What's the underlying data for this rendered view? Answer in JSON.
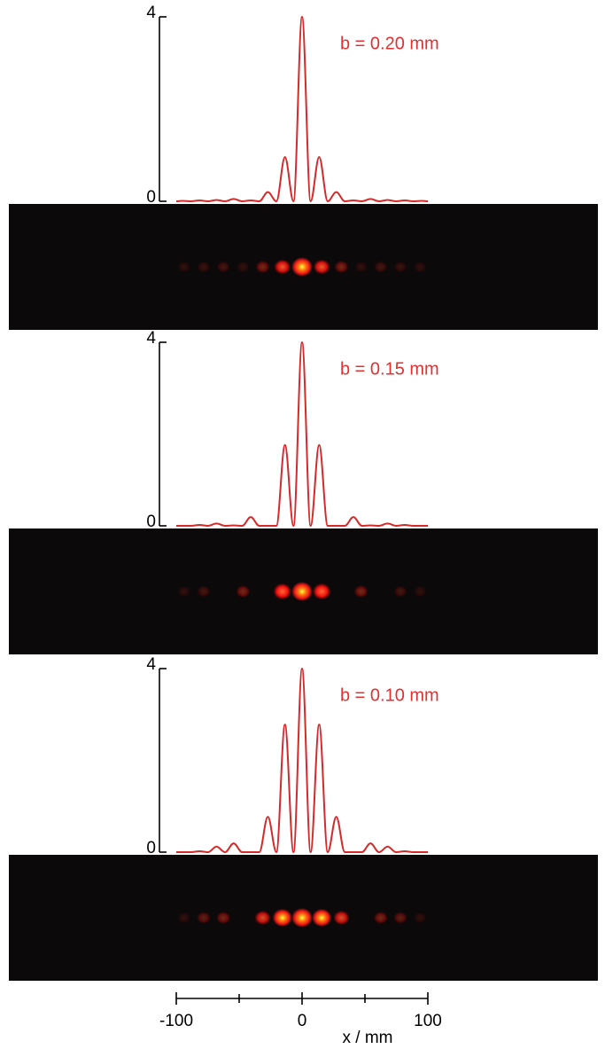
{
  "chart_data": [
    {
      "type": "line",
      "annotation": "b = 0.20 mm",
      "x": [
        -100,
        -95.2,
        -88.4,
        -81.6,
        -74.8,
        -68,
        -61.2,
        -54.4,
        -47.6,
        -40.8,
        -34,
        -27.2,
        -20.4,
        -13.6,
        -6.8,
        0,
        6.8,
        13.6,
        20.4,
        27.2,
        34,
        40.8,
        47.6,
        54.4,
        61.2,
        68,
        74.8,
        81.6,
        88.4,
        95.2,
        100
      ],
      "series": [
        {
          "color": "#d42a2a",
          "values": [
            0,
            0.01,
            0,
            0.02,
            0,
            0.03,
            0,
            0.05,
            0,
            0.02,
            0,
            0.2,
            0,
            0.96,
            0,
            4,
            0,
            0.96,
            0,
            0.2,
            0,
            0.02,
            0,
            0.05,
            0,
            0.03,
            0,
            0.02,
            0,
            0.01,
            0
          ]
        }
      ],
      "xlim": [
        -100,
        100
      ],
      "ylim": [
        0,
        4
      ],
      "yticks": [
        0,
        4
      ]
    },
    {
      "type": "line",
      "annotation": "b = 0.15 mm",
      "x": [
        -100,
        -95.2,
        -88.4,
        -81.6,
        -74.8,
        -68,
        -61.2,
        -54.4,
        -47.6,
        -40.8,
        -34,
        -27.2,
        -20.4,
        -13.6,
        -6.8,
        0,
        6.8,
        13.6,
        20.4,
        27.2,
        34,
        40.8,
        47.6,
        54.4,
        61.2,
        68,
        74.8,
        81.6,
        88.4,
        95.2,
        100
      ],
      "series": [
        {
          "color": "#d42a2a",
          "values": [
            0,
            0,
            0,
            0.02,
            0,
            0.05,
            0,
            0.01,
            0,
            0.19,
            0,
            0,
            0,
            1.76,
            0,
            4,
            0,
            1.76,
            0,
            0,
            0,
            0.19,
            0,
            0.01,
            0,
            0.05,
            0,
            0.02,
            0,
            0,
            0
          ]
        }
      ],
      "xlim": [
        -100,
        100
      ],
      "ylim": [
        0,
        4
      ],
      "yticks": [
        0,
        4
      ]
    },
    {
      "type": "line",
      "annotation": "b = 0.10 mm",
      "x": [
        -100,
        -95.2,
        -88.4,
        -81.6,
        -74.8,
        -68,
        -61.2,
        -54.4,
        -47.6,
        -40.8,
        -34,
        -27.2,
        -20.4,
        -13.6,
        -6.8,
        0,
        6.8,
        13.6,
        20.4,
        27.2,
        34,
        40.8,
        47.6,
        54.4,
        61.2,
        68,
        74.8,
        81.6,
        88.4,
        95.2,
        100
      ],
      "series": [
        {
          "color": "#d42a2a",
          "values": [
            0,
            0,
            0,
            0.02,
            0,
            0.12,
            0,
            0.19,
            0,
            0,
            0,
            0.77,
            0,
            2.78,
            0,
            4,
            0,
            2.78,
            0,
            0.77,
            0,
            0,
            0,
            0.19,
            0,
            0.12,
            0,
            0.02,
            0,
            0,
            0
          ]
        }
      ],
      "xlim": [
        -100,
        100
      ],
      "ylim": [
        0,
        4
      ],
      "yticks": [
        0,
        4
      ],
      "xticks": [
        -100,
        0,
        100
      ],
      "xminorticks": [
        -50,
        50
      ],
      "xlabel": "x / mm"
    }
  ]
}
